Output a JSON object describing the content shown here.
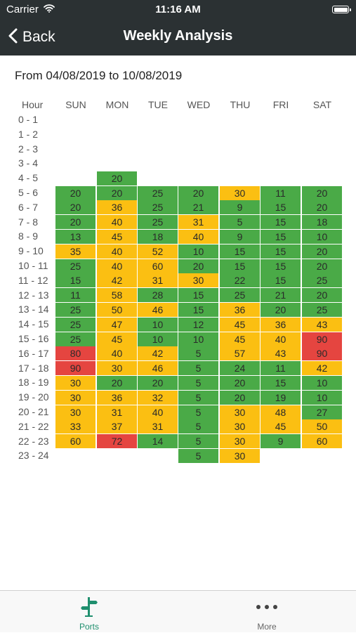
{
  "status": {
    "carrier": "Carrier",
    "time": "11:16 AM"
  },
  "nav": {
    "back_label": "Back",
    "title": "Weekly Analysis"
  },
  "range_text": "From 04/08/2019 to 10/08/2019",
  "table": {
    "hour_header": "Hour",
    "days": [
      "SUN",
      "MON",
      "TUE",
      "WED",
      "THU",
      "FRI",
      "SAT"
    ],
    "hours": [
      "0 - 1",
      "1 - 2",
      "2 - 3",
      "3 - 4",
      "4 - 5",
      "5 - 6",
      "6 - 7",
      "7 - 8",
      "8 - 9",
      "9 - 10",
      "10 - 11",
      "11 - 12",
      "12 - 13",
      "13 - 14",
      "14 - 15",
      "15 - 16",
      "16 - 17",
      "17 - 18",
      "18 - 19",
      "19 - 20",
      "20 - 21",
      "21 - 22",
      "22 - 23",
      "23 - 24"
    ],
    "values": [
      [
        null,
        null,
        null,
        null,
        null,
        null,
        null
      ],
      [
        null,
        null,
        null,
        null,
        null,
        null,
        null
      ],
      [
        null,
        null,
        null,
        null,
        null,
        null,
        null
      ],
      [
        null,
        null,
        null,
        null,
        null,
        null,
        null
      ],
      [
        null,
        20,
        null,
        null,
        null,
        null,
        null
      ],
      [
        20,
        20,
        25,
        20,
        30,
        11,
        20
      ],
      [
        20,
        36,
        25,
        21,
        9,
        15,
        20
      ],
      [
        20,
        40,
        25,
        31,
        5,
        15,
        18
      ],
      [
        13,
        45,
        18,
        40,
        9,
        15,
        10
      ],
      [
        35,
        40,
        52,
        10,
        15,
        15,
        20
      ],
      [
        25,
        40,
        60,
        20,
        15,
        15,
        20
      ],
      [
        15,
        42,
        31,
        30,
        22,
        15,
        25
      ],
      [
        11,
        58,
        28,
        15,
        25,
        21,
        20
      ],
      [
        25,
        50,
        46,
        15,
        36,
        20,
        25
      ],
      [
        25,
        47,
        10,
        12,
        45,
        36,
        43
      ],
      [
        25,
        45,
        10,
        10,
        45,
        40,
        90
      ],
      [
        80,
        40,
        42,
        5,
        57,
        43,
        90
      ],
      [
        90,
        30,
        46,
        5,
        24,
        11,
        42
      ],
      [
        30,
        20,
        20,
        5,
        20,
        15,
        10
      ],
      [
        30,
        36,
        32,
        5,
        20,
        19,
        10
      ],
      [
        30,
        31,
        40,
        5,
        30,
        48,
        27
      ],
      [
        33,
        37,
        31,
        5,
        30,
        45,
        50
      ],
      [
        60,
        72,
        14,
        5,
        30,
        9,
        60
      ],
      [
        null,
        null,
        null,
        5,
        30,
        null,
        null
      ]
    ],
    "levels": [
      [
        null,
        null,
        null,
        null,
        null,
        null,
        null
      ],
      [
        null,
        null,
        null,
        null,
        null,
        null,
        null
      ],
      [
        null,
        null,
        null,
        null,
        null,
        null,
        null
      ],
      [
        null,
        null,
        null,
        null,
        null,
        null,
        null
      ],
      [
        null,
        "green",
        null,
        null,
        null,
        null,
        null
      ],
      [
        "green",
        "green",
        "green",
        "green",
        "yellow",
        "green",
        "green"
      ],
      [
        "green",
        "yellow",
        "green",
        "green",
        "green",
        "green",
        "green"
      ],
      [
        "green",
        "yellow",
        "green",
        "yellow",
        "green",
        "green",
        "green"
      ],
      [
        "green",
        "yellow",
        "green",
        "yellow",
        "green",
        "green",
        "green"
      ],
      [
        "yellow",
        "yellow",
        "yellow",
        "green",
        "green",
        "green",
        "green"
      ],
      [
        "green",
        "yellow",
        "yellow",
        "green",
        "green",
        "green",
        "green"
      ],
      [
        "green",
        "yellow",
        "yellow",
        "yellow",
        "green",
        "green",
        "green"
      ],
      [
        "green",
        "yellow",
        "green",
        "green",
        "green",
        "green",
        "green"
      ],
      [
        "green",
        "yellow",
        "yellow",
        "green",
        "yellow",
        "green",
        "green"
      ],
      [
        "green",
        "yellow",
        "green",
        "green",
        "yellow",
        "yellow",
        "yellow"
      ],
      [
        "green",
        "yellow",
        "green",
        "green",
        "yellow",
        "yellow",
        "red"
      ],
      [
        "red",
        "yellow",
        "yellow",
        "green",
        "yellow",
        "yellow",
        "red"
      ],
      [
        "red",
        "yellow",
        "yellow",
        "green",
        "green",
        "green",
        "yellow"
      ],
      [
        "yellow",
        "green",
        "green",
        "green",
        "green",
        "green",
        "green"
      ],
      [
        "yellow",
        "yellow",
        "yellow",
        "green",
        "green",
        "green",
        "green"
      ],
      [
        "yellow",
        "yellow",
        "yellow",
        "green",
        "yellow",
        "yellow",
        "green"
      ],
      [
        "yellow",
        "yellow",
        "yellow",
        "green",
        "yellow",
        "yellow",
        "yellow"
      ],
      [
        "yellow",
        "red",
        "green",
        "green",
        "yellow",
        "green",
        "yellow"
      ],
      [
        null,
        null,
        null,
        "green",
        "yellow",
        null,
        null
      ]
    ]
  },
  "tabs": [
    {
      "label": "Ports",
      "icon": "signpost-icon",
      "color": "#1f8f6e",
      "selected": true
    },
    {
      "label": "More",
      "icon": "more-dots-icon",
      "color": "#666666",
      "selected": false
    }
  ],
  "colors": {
    "bar": "#2b3133",
    "green": "#4aaa47",
    "yellow": "#fbbf12",
    "red": "#e54540"
  }
}
